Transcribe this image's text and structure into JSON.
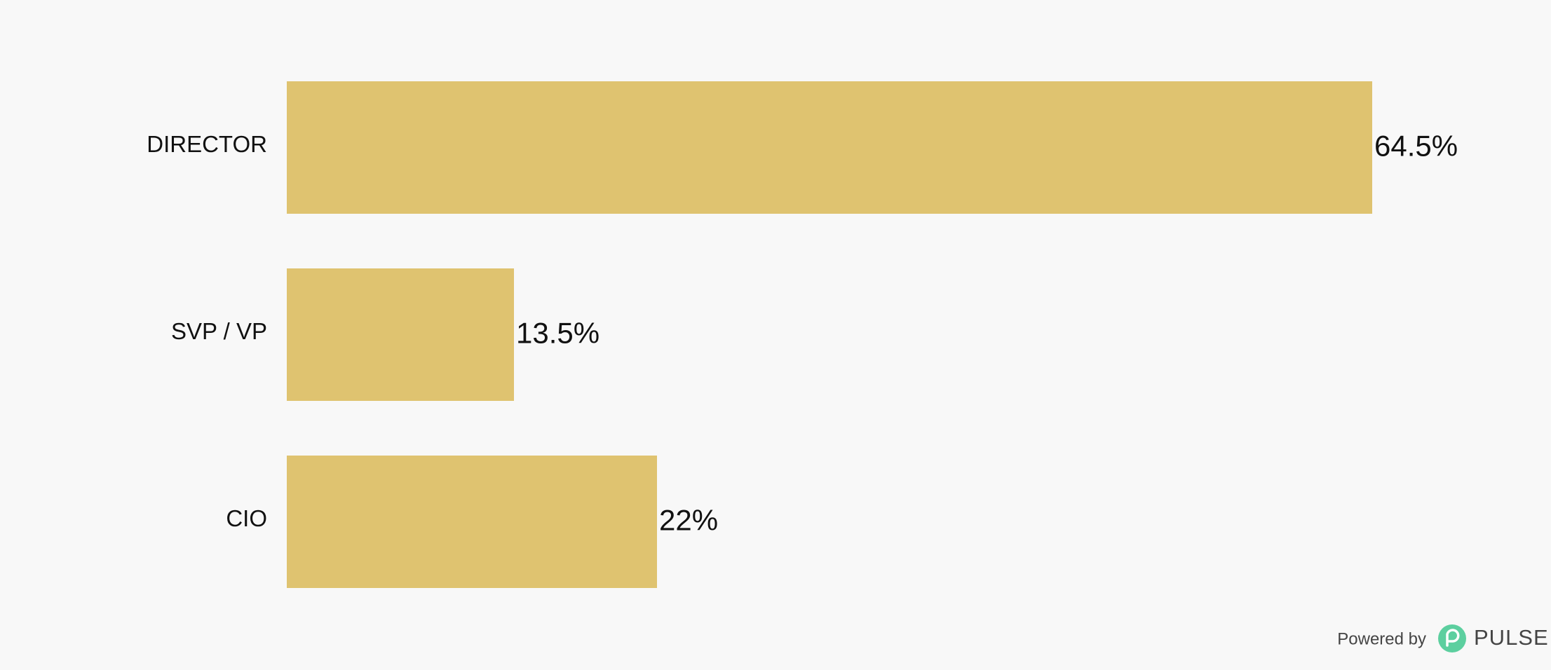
{
  "chart_data": {
    "type": "bar",
    "orientation": "horizontal",
    "categories": [
      "DIRECTOR",
      "SVP / VP",
      "CIO"
    ],
    "values": [
      64.5,
      13.5,
      22
    ],
    "value_labels": [
      "64.5%",
      "13.5%",
      "22%"
    ],
    "color": "#dfc370"
  },
  "footer": {
    "text": "Powered by",
    "brand": "PULSE"
  }
}
